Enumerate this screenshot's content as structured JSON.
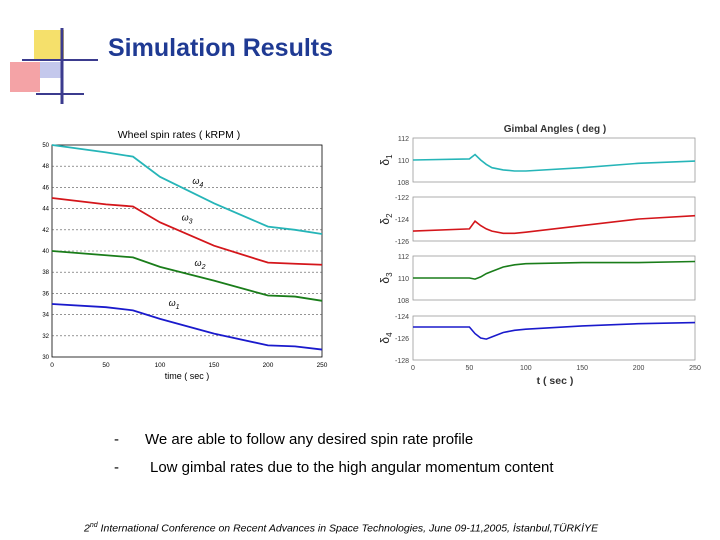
{
  "slide": {
    "title": "Simulation Results",
    "bullets": [
      {
        "dash": "-",
        "text": "We are able to follow any desired spin rate profile"
      },
      {
        "dash": "-",
        "text": "Low  gimbal rates due to the high angular momentum content"
      }
    ],
    "footer": {
      "prefix": "2",
      "sup": "nd",
      "text": " International Conference on Recent Advances in Space Technologies, June 09-11,2005, İstanbul,TÜRKİYE"
    }
  },
  "colors": {
    "title": "#1f3a93",
    "cyan": "#26b5b8",
    "red": "#d4161b",
    "green": "#1a7d1a",
    "blue": "#1a1acc"
  },
  "chart_data": [
    {
      "type": "line",
      "title": "Wheel spin rates  ( kRPM )",
      "xlabel": "time  ( sec )",
      "ylabel": "",
      "xlim": [
        0,
        250
      ],
      "ylim": [
        30,
        50
      ],
      "xticks": [
        "0",
        "50",
        "100",
        "150",
        "200",
        "250"
      ],
      "yticks": [
        "30",
        "32",
        "34",
        "36",
        "38",
        "40",
        "42",
        "44",
        "46",
        "48",
        "50"
      ],
      "x": [
        0,
        50,
        75,
        100,
        150,
        200,
        225,
        250
      ],
      "series": [
        {
          "name": "ω4",
          "label_main": "ω",
          "label_sub": "4",
          "color": "cyan",
          "values": [
            50.0,
            49.3,
            48.9,
            47.0,
            44.5,
            42.3,
            42.0,
            41.6
          ],
          "label_at": [
            130,
            46.3
          ]
        },
        {
          "name": "ω3",
          "label_main": "ω",
          "label_sub": "3",
          "color": "red",
          "values": [
            45.0,
            44.4,
            44.2,
            42.7,
            40.5,
            38.9,
            38.8,
            38.7
          ],
          "label_at": [
            120,
            42.9
          ]
        },
        {
          "name": "ω2",
          "label_main": "ω",
          "label_sub": "2",
          "color": "green",
          "values": [
            40.0,
            39.6,
            39.4,
            38.5,
            37.2,
            35.8,
            35.7,
            35.3
          ],
          "label_at": [
            132,
            38.6
          ]
        },
        {
          "name": "ω1",
          "label_main": "ω",
          "label_sub": "1",
          "color": "blue",
          "values": [
            35.0,
            34.7,
            34.4,
            33.6,
            32.2,
            31.1,
            31.0,
            30.7
          ],
          "label_at": [
            108,
            34.8
          ]
        }
      ]
    },
    {
      "type": "line",
      "title": "Gimbal Angles  ( deg )",
      "xlabel": "t ( sec )",
      "xlim": [
        0,
        250
      ],
      "xticks": [
        "0",
        "50",
        "100",
        "150",
        "200",
        "250"
      ],
      "x": [
        0,
        50,
        55,
        60,
        65,
        70,
        80,
        90,
        100,
        150,
        200,
        250
      ],
      "subplots": [
        {
          "ylabel_main": "δ",
          "ylabel_sub": "1",
          "ylim": [
            108,
            112
          ],
          "yticks": [
            "112",
            "110",
            "108"
          ],
          "color": "cyan",
          "values": [
            110.0,
            110.1,
            110.5,
            110.0,
            109.6,
            109.3,
            109.1,
            109.0,
            109.0,
            109.3,
            109.7,
            109.9
          ]
        },
        {
          "ylabel_main": "δ",
          "ylabel_sub": "2",
          "ylim": [
            -126,
            -122
          ],
          "yticks": [
            "-122",
            "-124",
            "-126"
          ],
          "color": "red",
          "values": [
            -125.1,
            -124.9,
            -124.2,
            -124.6,
            -124.9,
            -125.1,
            -125.3,
            -125.3,
            -125.2,
            -124.6,
            -124.0,
            -123.7
          ]
        },
        {
          "ylabel_main": "δ",
          "ylabel_sub": "3",
          "ylim": [
            108,
            112
          ],
          "yticks": [
            "112",
            "110",
            "108"
          ],
          "color": "green",
          "values": [
            110.0,
            110.0,
            109.9,
            110.1,
            110.4,
            110.6,
            111.0,
            111.2,
            111.3,
            111.4,
            111.4,
            111.5
          ]
        },
        {
          "ylabel_main": "δ",
          "ylabel_sub": "4",
          "ylim": [
            -128,
            -124
          ],
          "yticks": [
            "-124",
            "-126",
            "-128"
          ],
          "color": "blue",
          "values": [
            -125.0,
            -125.0,
            -125.6,
            -126.0,
            -126.1,
            -125.9,
            -125.5,
            -125.3,
            -125.2,
            -124.9,
            -124.7,
            -124.6
          ]
        }
      ]
    }
  ]
}
